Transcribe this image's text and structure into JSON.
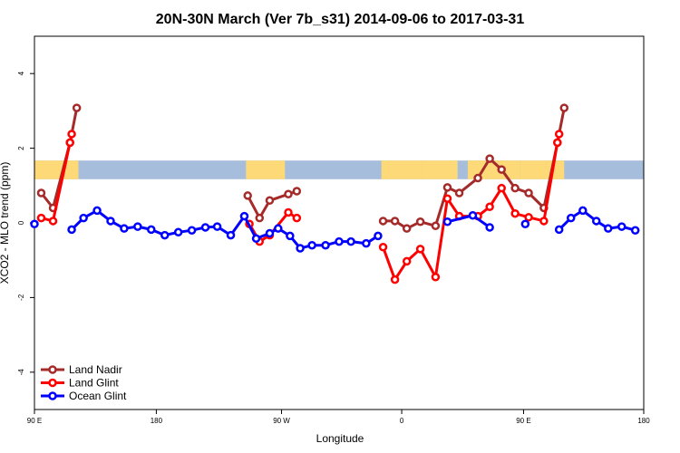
{
  "chart_data": {
    "type": "line",
    "title": "20N-30N March (Ver 7b_s31)   2014-09-06 to 2017-03-31",
    "xlabel": "Longitude",
    "ylabel": "XCO2 - MLO trend (ppm)",
    "xlim": [
      0,
      360
    ],
    "ylim": [
      -5,
      5
    ],
    "x_ticks": [
      {
        "value": 0,
        "label": "90 E"
      },
      {
        "value": 72,
        "label": "180"
      },
      {
        "value": 146,
        "label": "90 W"
      },
      {
        "value": 217,
        "label": "0"
      },
      {
        "value": 289,
        "label": "90 E"
      },
      {
        "value": 360,
        "label": "180"
      }
    ],
    "y_ticks": [
      {
        "value": -4,
        "label": "-4"
      },
      {
        "value": -2,
        "label": "-2"
      },
      {
        "value": 0,
        "label": "0"
      },
      {
        "value": 2,
        "label": "2"
      },
      {
        "value": 4,
        "label": "4"
      }
    ],
    "grid": false,
    "legend_position": "bottom-left",
    "map_strip": {
      "y_range": [
        1.17,
        1.67
      ],
      "ocean_color": "#a6bddb",
      "land_color": "#fdd978",
      "land_segments": [
        [
          0,
          26
        ],
        [
          125,
          148
        ],
        [
          205,
          229
        ],
        [
          229,
          250
        ],
        [
          256,
          287
        ],
        [
          287,
          313
        ]
      ]
    },
    "series": [
      {
        "name": "Land Nadir",
        "color": "#a52a2a",
        "segments": [
          [
            [
              4,
              0.8
            ],
            [
              11,
              0.4
            ],
            [
              21,
              2.15
            ],
            [
              25,
              3.08
            ]
          ],
          [
            [
              126,
              0.73
            ],
            [
              133,
              0.13
            ],
            [
              139,
              0.6
            ],
            [
              150,
              0.77
            ],
            [
              155,
              0.85
            ]
          ],
          [
            [
              206,
              0.05
            ],
            [
              213,
              0.05
            ],
            [
              220,
              -0.15
            ],
            [
              228,
              0.03
            ],
            [
              237,
              -0.08
            ],
            [
              244,
              0.95
            ],
            [
              251,
              0.8
            ],
            [
              262,
              1.2
            ],
            [
              269,
              1.72
            ],
            [
              276,
              1.43
            ],
            [
              284,
              0.93
            ],
            [
              292,
              0.8
            ],
            [
              301,
              0.4
            ],
            [
              309,
              2.15
            ],
            [
              313,
              3.08
            ]
          ]
        ]
      },
      {
        "name": "Land Glint",
        "color": "#ff0000",
        "segments": [
          [
            [
              4,
              0.13
            ],
            [
              11,
              0.05
            ],
            [
              21,
              2.15
            ],
            [
              22,
              2.38
            ]
          ],
          [
            [
              127,
              -0.03
            ],
            [
              133,
              -0.5
            ],
            [
              139,
              -0.33
            ],
            [
              150,
              0.28
            ],
            [
              155,
              0.13
            ]
          ],
          [
            [
              206,
              -0.65
            ],
            [
              213,
              -1.52
            ],
            [
              220,
              -1.03
            ],
            [
              228,
              -0.7
            ],
            [
              237,
              -1.45
            ],
            [
              244,
              0.65
            ],
            [
              251,
              0.18
            ],
            [
              262,
              0.18
            ],
            [
              269,
              0.43
            ],
            [
              276,
              0.93
            ],
            [
              284,
              0.25
            ],
            [
              292,
              0.15
            ],
            [
              301,
              0.05
            ],
            [
              309,
              2.15
            ],
            [
              310,
              2.38
            ]
          ]
        ]
      },
      {
        "name": "Ocean Glint",
        "color": "#0000ff",
        "segments": [
          [
            [
              0,
              -0.03
            ]
          ],
          [
            [
              22,
              -0.18
            ],
            [
              29,
              0.13
            ],
            [
              37,
              0.33
            ],
            [
              45,
              0.05
            ],
            [
              53,
              -0.15
            ],
            [
              61,
              -0.1
            ],
            [
              69,
              -0.18
            ],
            [
              77,
              -0.33
            ],
            [
              85,
              -0.25
            ],
            [
              93,
              -0.2
            ],
            [
              101,
              -0.12
            ],
            [
              108,
              -0.1
            ],
            [
              116,
              -0.33
            ],
            [
              124,
              0.18
            ],
            [
              131,
              -0.42
            ],
            [
              139,
              -0.28
            ],
            [
              144,
              -0.15
            ],
            [
              151,
              -0.35
            ],
            [
              157,
              -0.68
            ],
            [
              164,
              -0.6
            ],
            [
              172,
              -0.6
            ],
            [
              180,
              -0.5
            ],
            [
              187,
              -0.5
            ],
            [
              196,
              -0.55
            ],
            [
              203,
              -0.35
            ]
          ],
          [
            [
              244,
              0.03
            ],
            [
              259,
              0.2
            ],
            [
              269,
              -0.12
            ]
          ],
          [
            [
              290,
              -0.03
            ]
          ],
          [
            [
              310,
              -0.18
            ],
            [
              317,
              0.13
            ],
            [
              324,
              0.33
            ],
            [
              332,
              0.05
            ],
            [
              339,
              -0.15
            ],
            [
              347,
              -0.1
            ],
            [
              355,
              -0.2
            ]
          ]
        ]
      }
    ]
  }
}
